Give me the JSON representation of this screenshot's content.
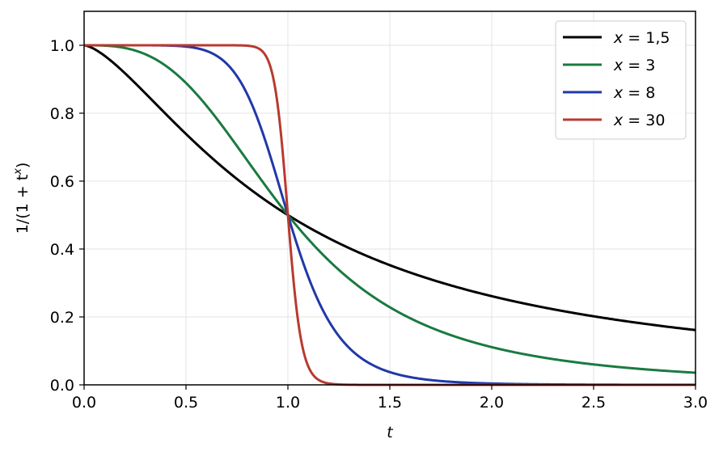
{
  "chart_data": {
    "type": "line",
    "title": "",
    "xlabel": "t",
    "ylabel_prefix": "1/(1 + t",
    "ylabel_exp": "x",
    "ylabel_suffix": ")",
    "xlim": [
      0.0,
      3.0
    ],
    "ylim": [
      0.0,
      1.1
    ],
    "x_ticks": [
      0.0,
      0.5,
      1.0,
      1.5,
      2.0,
      2.5,
      3.0
    ],
    "x_tick_labels": [
      "0.0",
      "0.5",
      "1.0",
      "1.5",
      "2.0",
      "2.5",
      "3.0"
    ],
    "y_ticks": [
      0.0,
      0.2,
      0.4,
      0.6,
      0.8,
      1.0
    ],
    "y_tick_labels": [
      "0.0",
      "0.2",
      "0.4",
      "0.6",
      "0.8",
      "1.0"
    ],
    "grid": true,
    "legend_position": "top-right",
    "series": [
      {
        "name_var": "x",
        "name_eq": " = ",
        "name_val": "1,5",
        "exponent": 1.5,
        "color": "#000000"
      },
      {
        "name_var": "x",
        "name_eq": " = ",
        "name_val": "3",
        "exponent": 3,
        "color": "#1a7a40"
      },
      {
        "name_var": "x",
        "name_eq": " = ",
        "name_val": "8",
        "exponent": 8,
        "color": "#2038a8"
      },
      {
        "name_var": "x",
        "name_eq": " = ",
        "name_val": "30",
        "exponent": 30,
        "color": "#b83a30"
      }
    ]
  }
}
